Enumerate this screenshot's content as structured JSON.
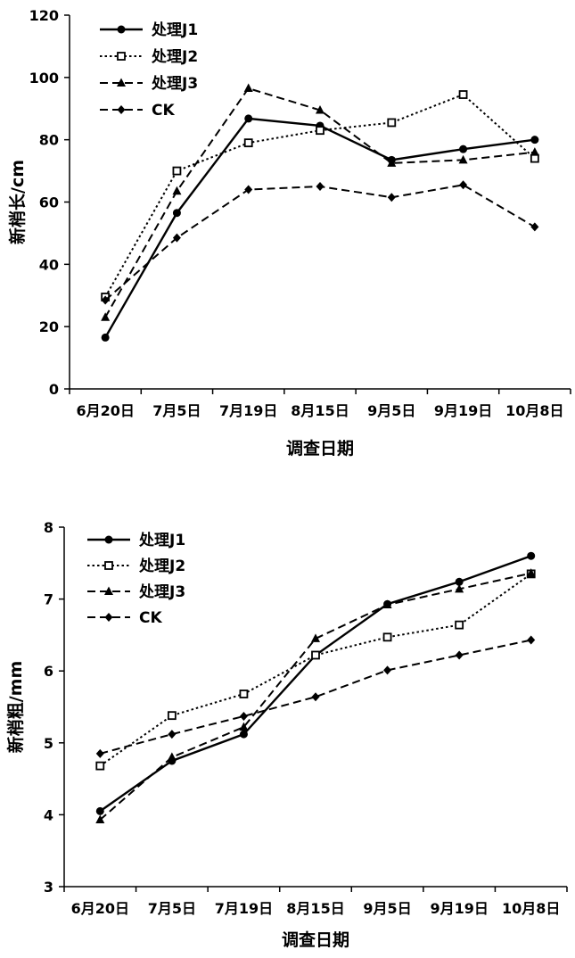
{
  "chart_data": [
    {
      "type": "line",
      "xlabel": "调查日期",
      "ylabel": "新梢长/cm",
      "ylim": [
        0,
        120
      ],
      "yticks": [
        0,
        20,
        40,
        60,
        80,
        100,
        120
      ],
      "categories": [
        "6月20日",
        "7月5日",
        "7月19日",
        "8月15日",
        "9月5日",
        "9月19日",
        "10月8日"
      ],
      "legend_position": "top-left",
      "series": [
        {
          "name": "处理J1",
          "style": "solid",
          "marker": "circle",
          "values": [
            16.5,
            56.5,
            86.8,
            84.5,
            73.5,
            77,
            80
          ]
        },
        {
          "name": "处理J2",
          "style": "dotted",
          "marker": "square-open",
          "values": [
            29.5,
            70,
            79,
            83,
            85.5,
            94.5,
            74
          ]
        },
        {
          "name": "处理J3",
          "style": "dashed",
          "marker": "triangle",
          "values": [
            23,
            63.5,
            96.5,
            89.5,
            72.5,
            73.5,
            76
          ]
        },
        {
          "name": "CK",
          "style": "dashed",
          "marker": "diamond",
          "values": [
            28.5,
            48.5,
            64,
            65,
            61.5,
            65.5,
            52
          ]
        }
      ]
    },
    {
      "type": "line",
      "xlabel": "调查日期",
      "ylabel": "新梢粗/mm",
      "ylim": [
        3,
        8
      ],
      "yticks": [
        3,
        4,
        5,
        6,
        7,
        8
      ],
      "categories": [
        "6月20日",
        "7月5日",
        "7月19日",
        "8月15日",
        "9月5日",
        "9月19日",
        "10月8日"
      ],
      "legend_position": "top-left",
      "series": [
        {
          "name": "处理J1",
          "style": "solid",
          "marker": "circle",
          "values": [
            4.05,
            4.75,
            5.12,
            6.22,
            6.93,
            7.24,
            7.6
          ]
        },
        {
          "name": "处理J2",
          "style": "dotted",
          "marker": "square-open",
          "values": [
            4.68,
            5.38,
            5.68,
            6.22,
            6.47,
            6.64,
            7.35
          ]
        },
        {
          "name": "处理J3",
          "style": "dashed",
          "marker": "triangle",
          "values": [
            3.93,
            4.8,
            5.22,
            6.45,
            6.92,
            7.14,
            7.36
          ]
        },
        {
          "name": "CK",
          "style": "dashed",
          "marker": "diamond",
          "values": [
            4.85,
            5.12,
            5.37,
            5.64,
            6.01,
            6.22,
            6.43
          ]
        }
      ]
    }
  ]
}
